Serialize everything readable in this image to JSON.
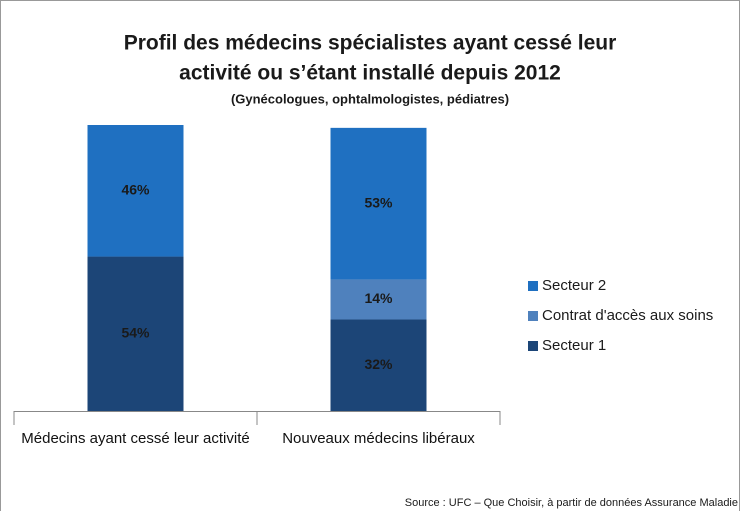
{
  "chart_data": {
    "type": "stacked_bar",
    "title": [
      "Profil des médecins spécialistes ayant cessé leur",
      "activité ou s’étant installé depuis 2012"
    ],
    "subtitle": "(Gynécologues, ophtalmologistes, pédiatres)",
    "categories": [
      "Médecins ayant cessé leur activité",
      "Nouveaux médecins libéraux"
    ],
    "series": [
      {
        "name": "Secteur 1",
        "color": "#1c4577",
        "values": [
          54,
          32
        ],
        "value_labels": [
          "54%",
          "32%"
        ]
      },
      {
        "name": "Contrat d'accès aux soins",
        "color": "#4f81bd",
        "values": [
          null,
          14
        ],
        "value_labels": [
          null,
          "14%"
        ]
      },
      {
        "name": "Secteur 2",
        "color": "#1f70c1",
        "values": [
          46,
          53
        ],
        "value_labels": [
          "46%",
          "53%"
        ]
      }
    ],
    "ylim": [
      0,
      100
    ],
    "legend": "right",
    "source": "Source : UFC – Que Choisir, à partir de données Assurance Maladie"
  }
}
